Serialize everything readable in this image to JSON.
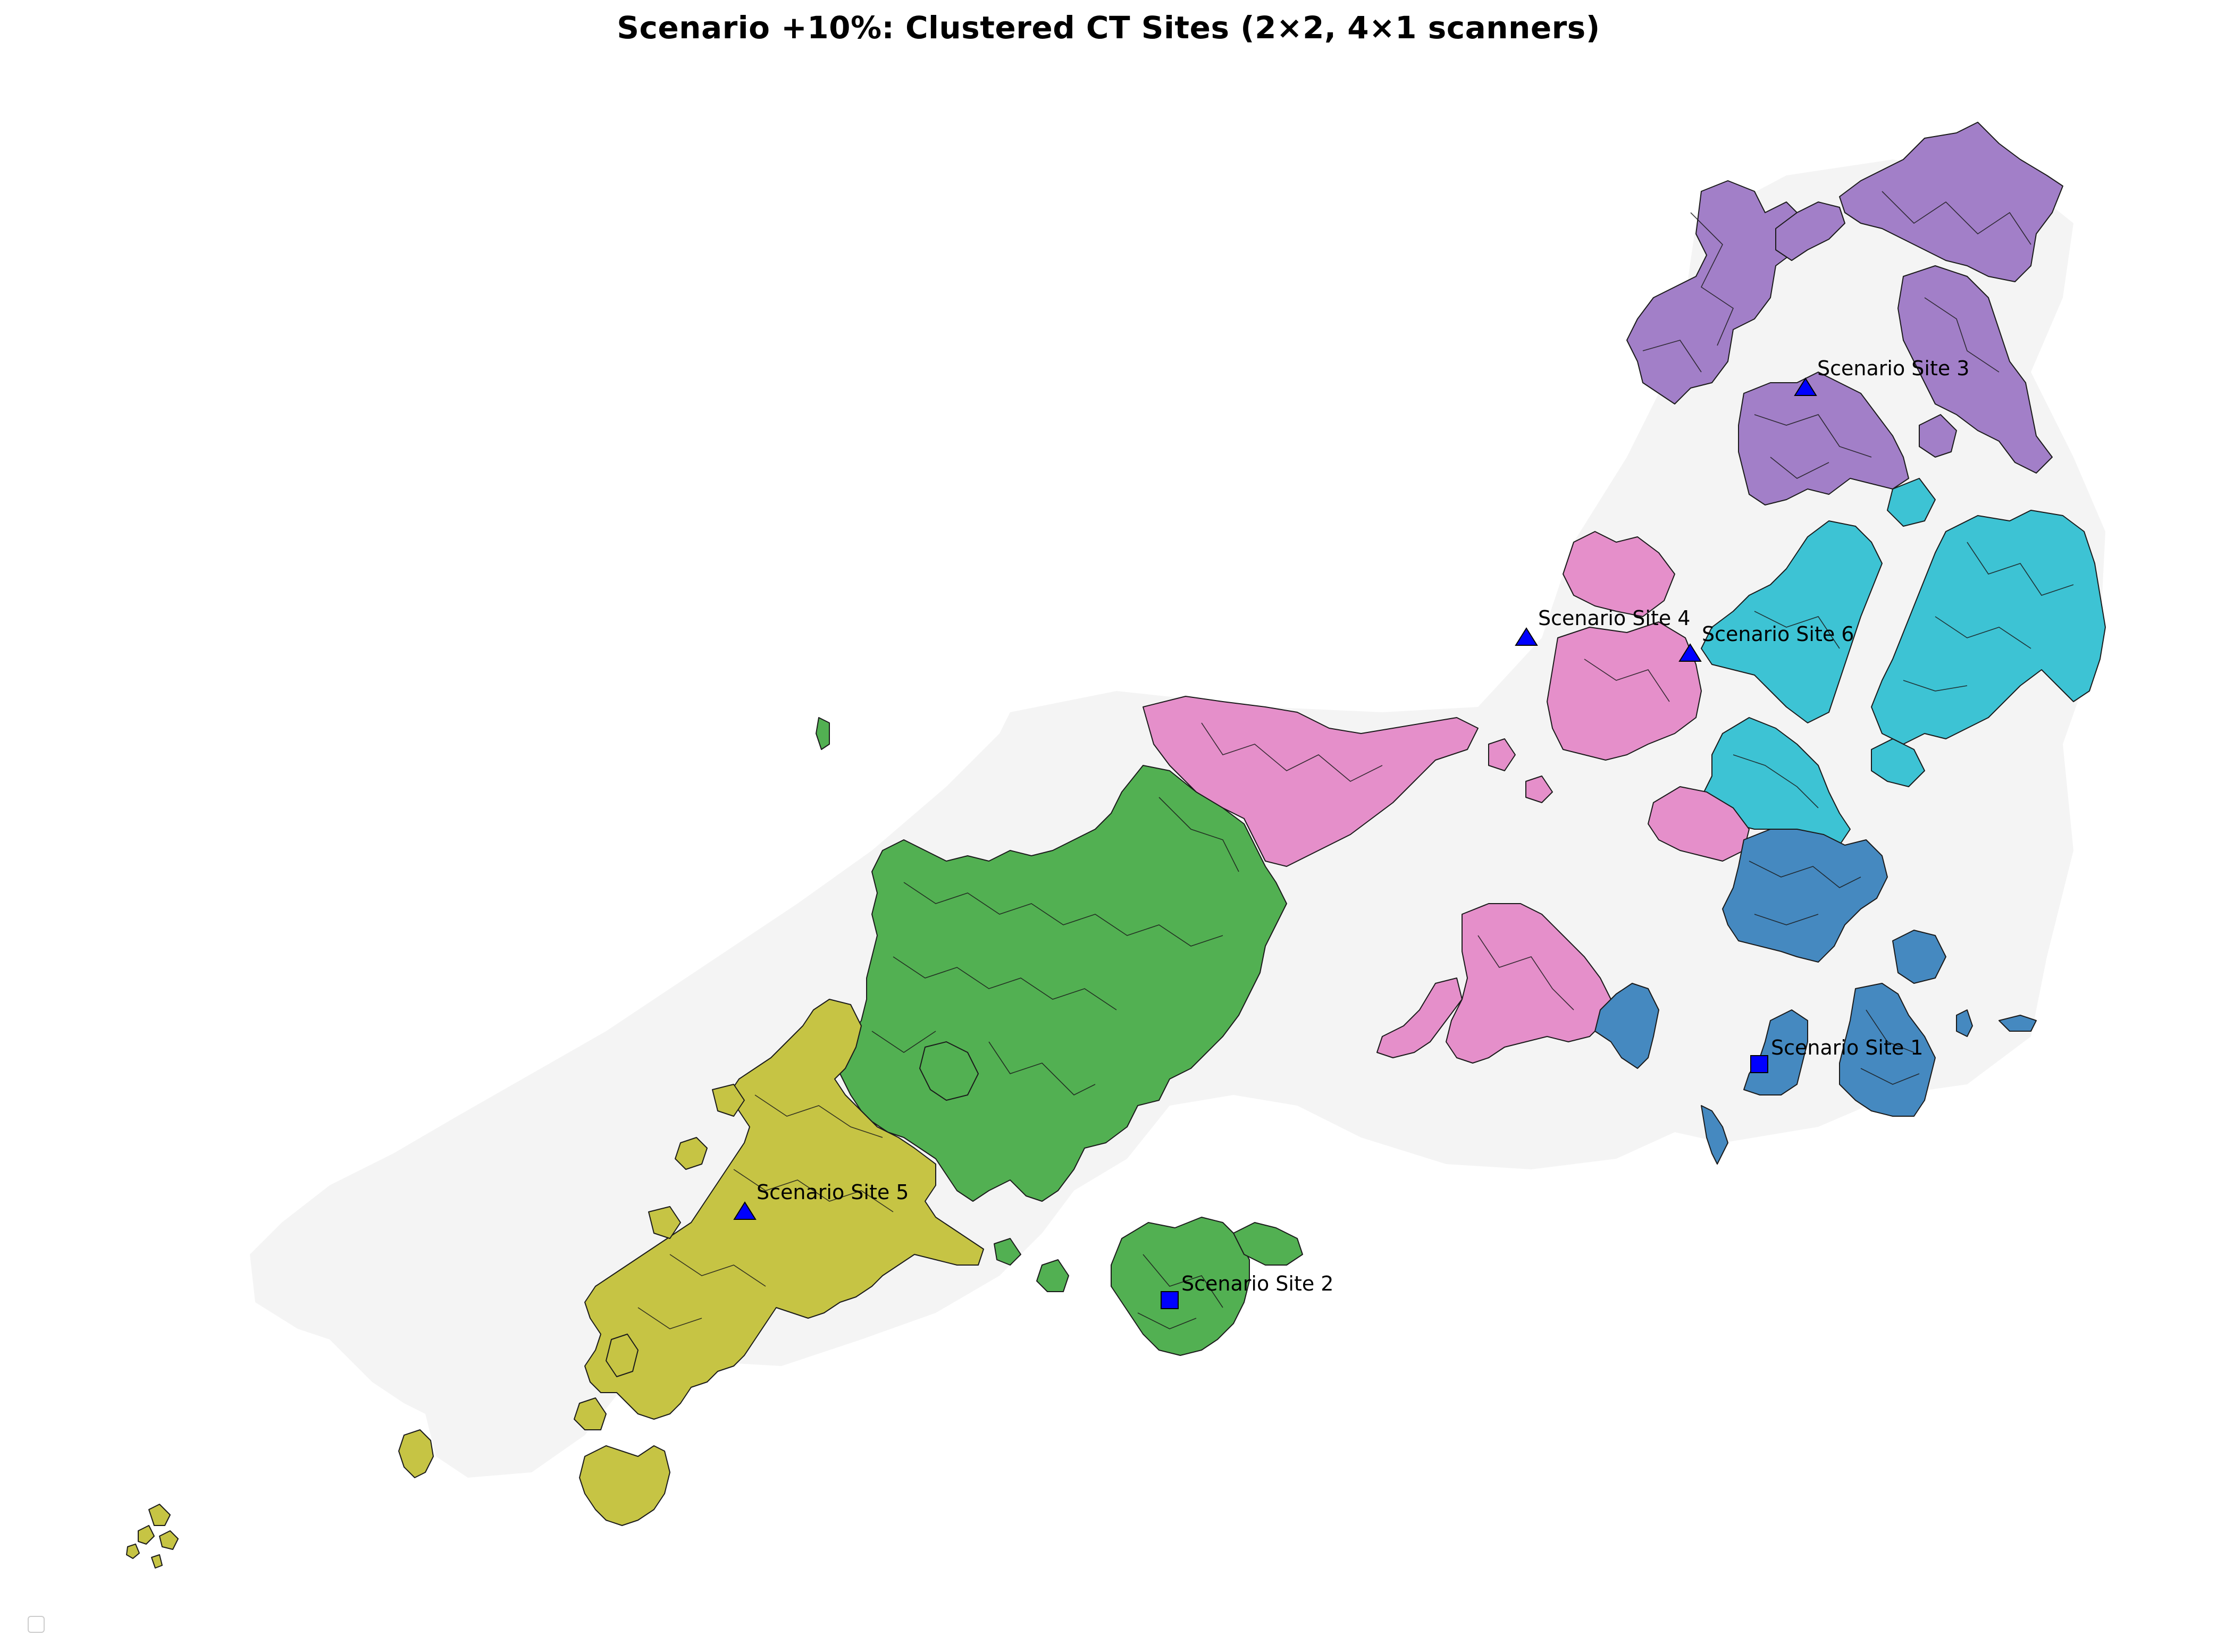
{
  "title": "Scenario +10%: Clustered CT Sites (2×2, 4×1 scanners)",
  "colors": {
    "background_land": "#f4f4f4",
    "cluster_purple": "#a27fc8",
    "cluster_cyan": "#3dc3d4",
    "cluster_pink": "#e58fca",
    "cluster_blue": "#4589c0",
    "cluster_green": "#52b052",
    "cluster_olive": "#c6c444",
    "marker": "#0000ff"
  },
  "sites": [
    {
      "label": "Scenario Site 1",
      "marker": "square"
    },
    {
      "label": "Scenario Site 2",
      "marker": "square"
    },
    {
      "label": "Scenario Site 3",
      "marker": "triangle"
    },
    {
      "label": "Scenario Site 4",
      "marker": "triangle"
    },
    {
      "label": "Scenario Site 5",
      "marker": "triangle"
    },
    {
      "label": "Scenario Site 6",
      "marker": "triangle"
    }
  ],
  "legend": {
    "entries": []
  }
}
